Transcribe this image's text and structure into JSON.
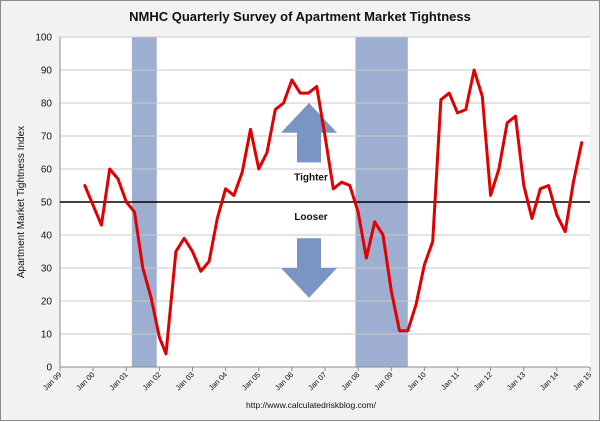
{
  "chart_data": {
    "type": "line",
    "title": "NMHC Quarterly Survey of Apartment Market Tightness",
    "ylabel": "Apartment Market Tightness Index",
    "xlabel": "",
    "ylim": [
      0,
      100
    ],
    "yticks": [
      0,
      10,
      20,
      30,
      40,
      50,
      60,
      70,
      80,
      90,
      100
    ],
    "xlim": [
      1999.0,
      2015.0
    ],
    "xticks": [
      {
        "label": "Jan 99",
        "x": 1999.0
      },
      {
        "label": "Jan 00",
        "x": 2000.0
      },
      {
        "label": "Jan 01",
        "x": 2001.0
      },
      {
        "label": "Jan 02",
        "x": 2002.0
      },
      {
        "label": "Jan 03",
        "x": 2003.0
      },
      {
        "label": "Jan 04",
        "x": 2004.0
      },
      {
        "label": "Jan 05",
        "x": 2005.0
      },
      {
        "label": "Jan 06",
        "x": 2006.0
      },
      {
        "label": "Jan 07",
        "x": 2007.0
      },
      {
        "label": "Jan 08",
        "x": 2008.0
      },
      {
        "label": "Jan 09",
        "x": 2009.0
      },
      {
        "label": "Jan 10",
        "x": 2010.0
      },
      {
        "label": "Jan 11",
        "x": 2011.0
      },
      {
        "label": "Jan 12",
        "x": 2012.0
      },
      {
        "label": "Jan 13",
        "x": 2013.0
      },
      {
        "label": "Jan 14",
        "x": 2014.0
      },
      {
        "label": "Jan 15",
        "x": 2015.0
      }
    ],
    "grid": true,
    "reference_line": {
      "y": 50,
      "color": "#000000"
    },
    "recessions": [
      {
        "start": 2001.17,
        "end": 2001.92
      },
      {
        "start": 2007.92,
        "end": 2009.5
      }
    ],
    "series": [
      {
        "color": "#e00000",
        "points": [
          [
            1999.75,
            55
          ],
          [
            2000.0,
            49
          ],
          [
            2000.25,
            43
          ],
          [
            2000.5,
            60
          ],
          [
            2000.75,
            57
          ],
          [
            2001.0,
            50
          ],
          [
            2001.25,
            47
          ],
          [
            2001.5,
            30
          ],
          [
            2001.75,
            21
          ],
          [
            2002.0,
            9
          ],
          [
            2002.2,
            4
          ],
          [
            2002.5,
            35
          ],
          [
            2002.75,
            39
          ],
          [
            2003.0,
            35
          ],
          [
            2003.25,
            29
          ],
          [
            2003.5,
            32
          ],
          [
            2003.75,
            45
          ],
          [
            2004.0,
            54
          ],
          [
            2004.25,
            52
          ],
          [
            2004.5,
            59
          ],
          [
            2004.75,
            72
          ],
          [
            2005.0,
            60
          ],
          [
            2005.25,
            65
          ],
          [
            2005.5,
            78
          ],
          [
            2005.75,
            80
          ],
          [
            2006.0,
            87
          ],
          [
            2006.25,
            83
          ],
          [
            2006.5,
            83
          ],
          [
            2006.75,
            85
          ],
          [
            2007.0,
            70
          ],
          [
            2007.25,
            54
          ],
          [
            2007.5,
            56
          ],
          [
            2007.75,
            55
          ],
          [
            2008.0,
            47
          ],
          [
            2008.25,
            33
          ],
          [
            2008.5,
            44
          ],
          [
            2008.75,
            40
          ],
          [
            2009.0,
            23
          ],
          [
            2009.25,
            11
          ],
          [
            2009.5,
            11
          ],
          [
            2009.75,
            19
          ],
          [
            2010.0,
            31
          ],
          [
            2010.25,
            38
          ],
          [
            2010.5,
            81
          ],
          [
            2010.75,
            83
          ],
          [
            2011.0,
            77
          ],
          [
            2011.25,
            78
          ],
          [
            2011.5,
            90
          ],
          [
            2011.75,
            82
          ],
          [
            2012.0,
            52
          ],
          [
            2012.25,
            60
          ],
          [
            2012.5,
            74
          ],
          [
            2012.75,
            76
          ],
          [
            2013.0,
            55
          ],
          [
            2013.25,
            45
          ],
          [
            2013.5,
            54
          ],
          [
            2013.75,
            55
          ],
          [
            2014.0,
            46
          ],
          [
            2014.25,
            41
          ],
          [
            2014.5,
            56
          ],
          [
            2014.75,
            68
          ]
        ]
      }
    ],
    "annotations": [
      {
        "text": "Tighter",
        "direction": "up"
      },
      {
        "text": "Looser",
        "direction": "down"
      }
    ],
    "arrow_color": "#7a94c4",
    "recession_color": "#9daed1",
    "source": "http://www.calculatedriskblog.com/"
  }
}
